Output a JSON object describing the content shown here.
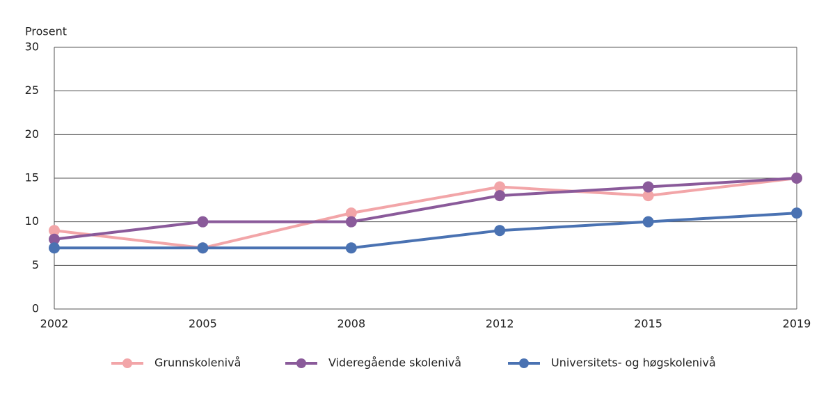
{
  "chart_data": {
    "type": "line",
    "y_label": "Prosent",
    "categories": [
      "2002",
      "2005",
      "2008",
      "2012",
      "2015",
      "2019"
    ],
    "series": [
      {
        "name": "Grunnskolenivå",
        "color": "#f2a5a8",
        "values": [
          9,
          7,
          11,
          14,
          13,
          15
        ]
      },
      {
        "name": "Videregående skolenivå",
        "color": "#8a5a9a",
        "values": [
          8,
          10,
          10,
          13,
          14,
          15
        ]
      },
      {
        "name": "Universitets- og høgskolenivå",
        "color": "#4a72b2",
        "values": [
          7,
          7,
          7,
          9,
          10,
          11
        ]
      }
    ],
    "ylim": [
      0,
      30
    ],
    "yticks": [
      0,
      5,
      10,
      15,
      20,
      25,
      30
    ],
    "grid": true
  }
}
